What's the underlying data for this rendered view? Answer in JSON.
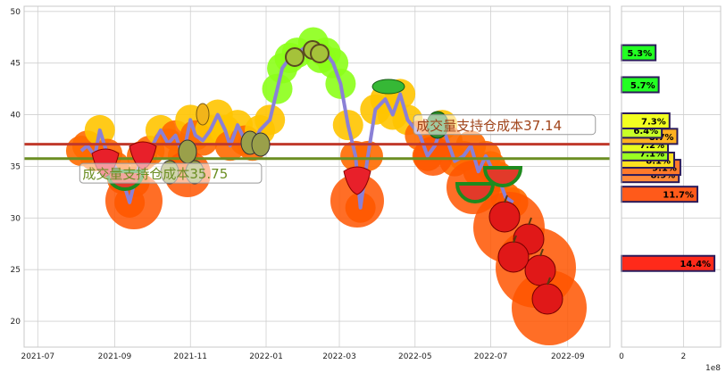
{
  "chart_data": {
    "type": "line",
    "title": "",
    "xlabel": "",
    "ylabel": "",
    "x_ticks": [
      "2021-07",
      "2021-09",
      "2021-11",
      "2022-01",
      "2022-03",
      "2022-05",
      "2022-07",
      "2022-09"
    ],
    "y_ticks": [
      20,
      25,
      30,
      35,
      40,
      45,
      50
    ],
    "ylim": [
      17.5,
      50.5
    ],
    "grid": true,
    "price_series": {
      "x": [
        "2021-08-05",
        "2021-08-10",
        "2021-08-16",
        "2021-08-20",
        "2021-08-26",
        "2021-09-01",
        "2021-09-07",
        "2021-09-13",
        "2021-09-17",
        "2021-09-23",
        "2021-09-29",
        "2021-10-08",
        "2021-10-14",
        "2021-10-20",
        "2021-10-26",
        "2021-11-01",
        "2021-11-05",
        "2021-11-11",
        "2021-11-17",
        "2021-11-23",
        "2021-11-29",
        "2021-12-03",
        "2021-12-09",
        "2021-12-15",
        "2021-12-21",
        "2021-12-27",
        "2022-01-04",
        "2022-01-10",
        "2022-01-14",
        "2022-01-20",
        "2022-01-26",
        "2022-02-08",
        "2022-02-14",
        "2022-02-18",
        "2022-02-24",
        "2022-03-02",
        "2022-03-08",
        "2022-03-14",
        "2022-03-18",
        "2022-03-24",
        "2022-03-30",
        "2022-04-07",
        "2022-04-13",
        "2022-04-19",
        "2022-04-25",
        "2022-05-05",
        "2022-05-11",
        "2022-05-17",
        "2022-05-23",
        "2022-05-27",
        "2022-06-02",
        "2022-06-09",
        "2022-06-15",
        "2022-06-21",
        "2022-06-27",
        "2022-07-01",
        "2022-07-07",
        "2022-07-13",
        "2022-07-19"
      ],
      "values": [
        36.5,
        37.0,
        36.0,
        38.5,
        36.2,
        35.0,
        33.8,
        31.5,
        33.5,
        36.0,
        36.5,
        38.5,
        37.2,
        38.0,
        36.0,
        39.5,
        38.0,
        37.5,
        38.5,
        40.0,
        38.5,
        37.0,
        39.0,
        37.5,
        37.0,
        38.5,
        39.5,
        42.5,
        44.5,
        45.5,
        46.0,
        47.0,
        45.5,
        46.0,
        45.0,
        43.0,
        39.0,
        36.0,
        31.0,
        36.0,
        40.5,
        41.5,
        40.0,
        42.0,
        39.5,
        38.0,
        36.0,
        37.0,
        39.0,
        37.5,
        35.5,
        36.0,
        37.0,
        34.5,
        36.0,
        35.0,
        34.0,
        32.0,
        31.5
      ]
    },
    "reference_lines": [
      {
        "value": 37.14,
        "color": "#c0392b"
      },
      {
        "value": 35.75,
        "color": "#6b8e23"
      }
    ],
    "annotations": [
      {
        "text": "成交量支持仓成本35.75",
        "x": "2021-08-06",
        "y": 33.9,
        "color": "#6b8e23"
      },
      {
        "text": "成交量支持仓成本37.14",
        "x": "2022-05-02",
        "y": 38.6,
        "color": "#a0441a"
      }
    ],
    "volume_profile": {
      "x_ticks": [
        "0",
        "2"
      ],
      "x_multiplier": "1e8",
      "xlim": [
        0,
        3.2
      ],
      "bars": [
        {
          "price": 25.6,
          "value": 3.0,
          "label": "14.4%",
          "color": "#ff2a1a"
        },
        {
          "price": 32.3,
          "value": 2.45,
          "label": "11.7%",
          "color": "#ff5a1a"
        },
        {
          "price": 34.2,
          "value": 1.85,
          "label": "8.9%",
          "color": "#ff8a3a"
        },
        {
          "price": 34.9,
          "value": 1.9,
          "label": "9.1%",
          "color": "#ff7a2a"
        },
        {
          "price": 35.6,
          "value": 1.7,
          "label": "8.1%",
          "color": "#ffe020"
        },
        {
          "price": 36.3,
          "value": 1.5,
          "label": "7.1%",
          "color": "#9aff22"
        },
        {
          "price": 37.1,
          "value": 1.5,
          "label": "7.2%",
          "color": "#e8ff20"
        },
        {
          "price": 37.9,
          "value": 1.8,
          "label": "8.7%",
          "color": "#ffb020"
        },
        {
          "price": 38.5,
          "value": 1.3,
          "label": "6.4%",
          "color": "#c8ff28"
        },
        {
          "price": 39.4,
          "value": 1.55,
          "label": "7.3%",
          "color": "#f2ff20"
        },
        {
          "price": 42.9,
          "value": 1.2,
          "label": "5.7%",
          "color": "#22ff22"
        },
        {
          "price": 46.0,
          "value": 1.1,
          "label": "5.3%",
          "color": "#22ff22"
        }
      ]
    }
  }
}
